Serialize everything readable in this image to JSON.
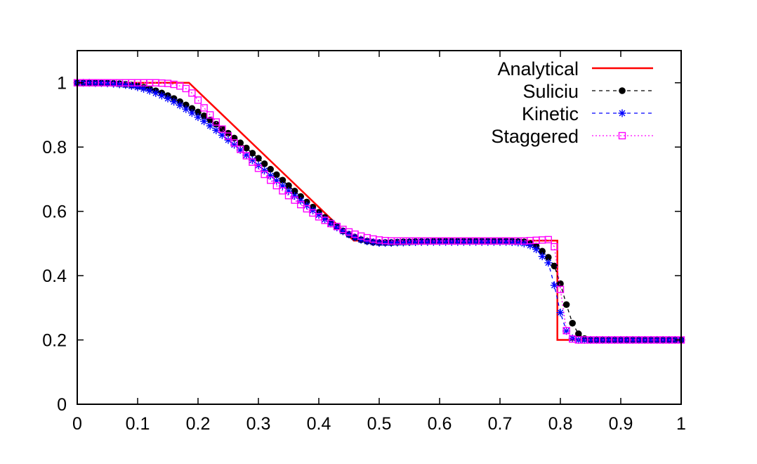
{
  "chart_data": {
    "type": "line",
    "title": "",
    "xlabel": "",
    "ylabel": "",
    "xlim": [
      0,
      1
    ],
    "ylim": [
      0,
      1.1
    ],
    "x_ticks": [
      "0",
      "0.1",
      "0.2",
      "0.3",
      "0.4",
      "0.5",
      "0.6",
      "0.7",
      "0.8",
      "0.9",
      "1"
    ],
    "y_ticks": [
      "0",
      "0.2",
      "0.4",
      "0.6",
      "0.8",
      "1"
    ],
    "x_tick_values": [
      0,
      0.1,
      0.2,
      0.3,
      0.4,
      0.5,
      0.6,
      0.7,
      0.8,
      0.9,
      1
    ],
    "y_tick_values": [
      0,
      0.2,
      0.4,
      0.6,
      0.8,
      1
    ],
    "grid": false,
    "legend_position": "top-right",
    "series": [
      {
        "name": "Analytical",
        "color": "#ff0000",
        "style": "solid",
        "marker": "none",
        "x": [
          0,
          0.185,
          0.21,
          0.25,
          0.3,
          0.35,
          0.4,
          0.435,
          0.458,
          0.47,
          0.5,
          0.55,
          0.6,
          0.65,
          0.7,
          0.75,
          0.795,
          0.795,
          0.85,
          0.9,
          0.95,
          1
        ],
        "y": [
          1,
          1,
          0.955,
          0.883,
          0.793,
          0.703,
          0.613,
          0.55,
          0.509,
          0.509,
          0.509,
          0.509,
          0.509,
          0.509,
          0.509,
          0.509,
          0.509,
          0.2,
          0.2,
          0.2,
          0.2,
          0.2
        ]
      },
      {
        "name": "Suliciu",
        "color": "#000000",
        "style": "dashed",
        "marker": "filled-circle",
        "x": [
          0,
          0.01,
          0.02,
          0.03,
          0.04,
          0.05,
          0.06,
          0.07,
          0.08,
          0.09,
          0.1,
          0.11,
          0.12,
          0.13,
          0.14,
          0.15,
          0.16,
          0.17,
          0.18,
          0.19,
          0.2,
          0.21,
          0.22,
          0.23,
          0.24,
          0.25,
          0.26,
          0.27,
          0.28,
          0.29,
          0.3,
          0.31,
          0.32,
          0.33,
          0.34,
          0.35,
          0.36,
          0.37,
          0.38,
          0.39,
          0.4,
          0.41,
          0.42,
          0.43,
          0.44,
          0.45,
          0.46,
          0.47,
          0.48,
          0.49,
          0.5,
          0.51,
          0.52,
          0.53,
          0.54,
          0.55,
          0.56,
          0.57,
          0.58,
          0.59,
          0.6,
          0.61,
          0.62,
          0.63,
          0.64,
          0.65,
          0.66,
          0.67,
          0.68,
          0.69,
          0.7,
          0.71,
          0.72,
          0.73,
          0.74,
          0.75,
          0.76,
          0.77,
          0.78,
          0.79,
          0.8,
          0.81,
          0.82,
          0.83,
          0.84,
          0.85,
          0.86,
          0.87,
          0.88,
          0.89,
          0.9,
          0.91,
          0.92,
          0.93,
          0.94,
          0.95,
          0.96,
          0.97,
          0.98,
          0.99,
          1
        ],
        "y": [
          1,
          1,
          1,
          1,
          0.999,
          0.999,
          0.998,
          0.997,
          0.995,
          0.993,
          0.99,
          0.986,
          0.981,
          0.975,
          0.968,
          0.96,
          0.951,
          0.941,
          0.931,
          0.92,
          0.909,
          0.897,
          0.884,
          0.871,
          0.857,
          0.843,
          0.828,
          0.813,
          0.797,
          0.781,
          0.765,
          0.748,
          0.731,
          0.714,
          0.697,
          0.68,
          0.663,
          0.646,
          0.629,
          0.613,
          0.597,
          0.581,
          0.566,
          0.552,
          0.539,
          0.528,
          0.519,
          0.512,
          0.507,
          0.504,
          0.503,
          0.503,
          0.503,
          0.504,
          0.505,
          0.505,
          0.506,
          0.506,
          0.506,
          0.507,
          0.507,
          0.507,
          0.507,
          0.507,
          0.507,
          0.507,
          0.507,
          0.507,
          0.507,
          0.507,
          0.507,
          0.507,
          0.507,
          0.506,
          0.505,
          0.5,
          0.492,
          0.476,
          0.457,
          0.43,
          0.375,
          0.31,
          0.252,
          0.219,
          0.204,
          0.2,
          0.2,
          0.2,
          0.2,
          0.2,
          0.2,
          0.2,
          0.2,
          0.2,
          0.2,
          0.2,
          0.2,
          0.2,
          0.2,
          0.2,
          0.2
        ]
      },
      {
        "name": "Kinetic",
        "color": "#0000ff",
        "style": "dashed",
        "marker": "asterisk",
        "x": [
          0,
          0.01,
          0.02,
          0.03,
          0.04,
          0.05,
          0.06,
          0.07,
          0.08,
          0.09,
          0.1,
          0.11,
          0.12,
          0.13,
          0.14,
          0.15,
          0.16,
          0.17,
          0.18,
          0.19,
          0.2,
          0.21,
          0.22,
          0.23,
          0.24,
          0.25,
          0.26,
          0.27,
          0.28,
          0.29,
          0.3,
          0.31,
          0.32,
          0.33,
          0.34,
          0.35,
          0.36,
          0.37,
          0.38,
          0.39,
          0.4,
          0.41,
          0.42,
          0.43,
          0.44,
          0.45,
          0.46,
          0.47,
          0.48,
          0.49,
          0.5,
          0.51,
          0.52,
          0.53,
          0.54,
          0.55,
          0.56,
          0.57,
          0.58,
          0.59,
          0.6,
          0.61,
          0.62,
          0.63,
          0.64,
          0.65,
          0.66,
          0.67,
          0.68,
          0.69,
          0.7,
          0.71,
          0.72,
          0.73,
          0.74,
          0.75,
          0.76,
          0.77,
          0.78,
          0.79,
          0.8,
          0.81,
          0.82,
          0.83,
          0.84,
          0.85,
          0.86,
          0.87,
          0.88,
          0.89,
          0.9,
          0.91,
          0.92,
          0.93,
          0.94,
          0.95,
          0.96,
          0.97,
          0.98,
          0.99,
          1
        ],
        "y": [
          1,
          1,
          1,
          0.999,
          0.999,
          0.998,
          0.997,
          0.995,
          0.993,
          0.99,
          0.986,
          0.981,
          0.975,
          0.968,
          0.96,
          0.951,
          0.941,
          0.93,
          0.918,
          0.906,
          0.893,
          0.88,
          0.866,
          0.852,
          0.837,
          0.822,
          0.807,
          0.791,
          0.775,
          0.759,
          0.743,
          0.727,
          0.711,
          0.695,
          0.679,
          0.663,
          0.648,
          0.633,
          0.618,
          0.603,
          0.589,
          0.575,
          0.562,
          0.55,
          0.538,
          0.528,
          0.519,
          0.512,
          0.507,
          0.504,
          0.502,
          0.502,
          0.502,
          0.503,
          0.503,
          0.504,
          0.504,
          0.505,
          0.505,
          0.505,
          0.505,
          0.505,
          0.505,
          0.505,
          0.505,
          0.505,
          0.505,
          0.505,
          0.505,
          0.505,
          0.505,
          0.505,
          0.504,
          0.503,
          0.5,
          0.494,
          0.482,
          0.46,
          0.44,
          0.37,
          0.285,
          0.228,
          0.205,
          0.2,
          0.2,
          0.2,
          0.2,
          0.2,
          0.2,
          0.2,
          0.2,
          0.2,
          0.2,
          0.2,
          0.2,
          0.2,
          0.2,
          0.2,
          0.2,
          0.2,
          0.2
        ]
      },
      {
        "name": "Staggered",
        "color": "#ff00ff",
        "style": "dotted",
        "marker": "open-square",
        "x": [
          0,
          0.01,
          0.02,
          0.03,
          0.04,
          0.05,
          0.06,
          0.07,
          0.08,
          0.09,
          0.1,
          0.11,
          0.12,
          0.13,
          0.14,
          0.15,
          0.16,
          0.17,
          0.18,
          0.19,
          0.2,
          0.21,
          0.22,
          0.23,
          0.24,
          0.25,
          0.26,
          0.27,
          0.28,
          0.29,
          0.3,
          0.31,
          0.32,
          0.33,
          0.34,
          0.35,
          0.36,
          0.37,
          0.38,
          0.39,
          0.4,
          0.41,
          0.42,
          0.43,
          0.44,
          0.45,
          0.46,
          0.47,
          0.48,
          0.49,
          0.5,
          0.51,
          0.52,
          0.53,
          0.54,
          0.55,
          0.56,
          0.57,
          0.58,
          0.59,
          0.6,
          0.61,
          0.62,
          0.63,
          0.64,
          0.65,
          0.66,
          0.67,
          0.68,
          0.69,
          0.7,
          0.71,
          0.72,
          0.73,
          0.74,
          0.75,
          0.76,
          0.77,
          0.78,
          0.79,
          0.8,
          0.81,
          0.82,
          0.83,
          0.84,
          0.85,
          0.86,
          0.87,
          0.88,
          0.89,
          0.9,
          0.91,
          0.92,
          0.93,
          0.94,
          0.95,
          0.96,
          0.97,
          0.98,
          0.99,
          1
        ],
        "y": [
          1,
          1,
          1,
          1,
          1,
          1,
          1,
          1,
          1,
          1,
          1,
          1,
          1,
          1,
          0.999,
          0.998,
          0.995,
          0.99,
          0.982,
          0.968,
          0.946,
          0.922,
          0.9,
          0.878,
          0.856,
          0.834,
          0.813,
          0.793,
          0.773,
          0.753,
          0.734,
          0.715,
          0.697,
          0.68,
          0.664,
          0.649,
          0.635,
          0.621,
          0.608,
          0.595,
          0.583,
          0.572,
          0.562,
          0.553,
          0.544,
          0.536,
          0.529,
          0.523,
          0.518,
          0.514,
          0.511,
          0.509,
          0.508,
          0.508,
          0.508,
          0.508,
          0.508,
          0.508,
          0.508,
          0.508,
          0.508,
          0.508,
          0.508,
          0.508,
          0.508,
          0.508,
          0.508,
          0.508,
          0.508,
          0.508,
          0.508,
          0.508,
          0.508,
          0.508,
          0.508,
          0.509,
          0.51,
          0.511,
          0.512,
          0.49,
          0.357,
          0.229,
          0.203,
          0.2,
          0.2,
          0.2,
          0.2,
          0.2,
          0.2,
          0.2,
          0.2,
          0.2,
          0.2,
          0.2,
          0.2,
          0.2,
          0.2,
          0.2,
          0.2,
          0.2,
          0.2
        ]
      }
    ]
  }
}
